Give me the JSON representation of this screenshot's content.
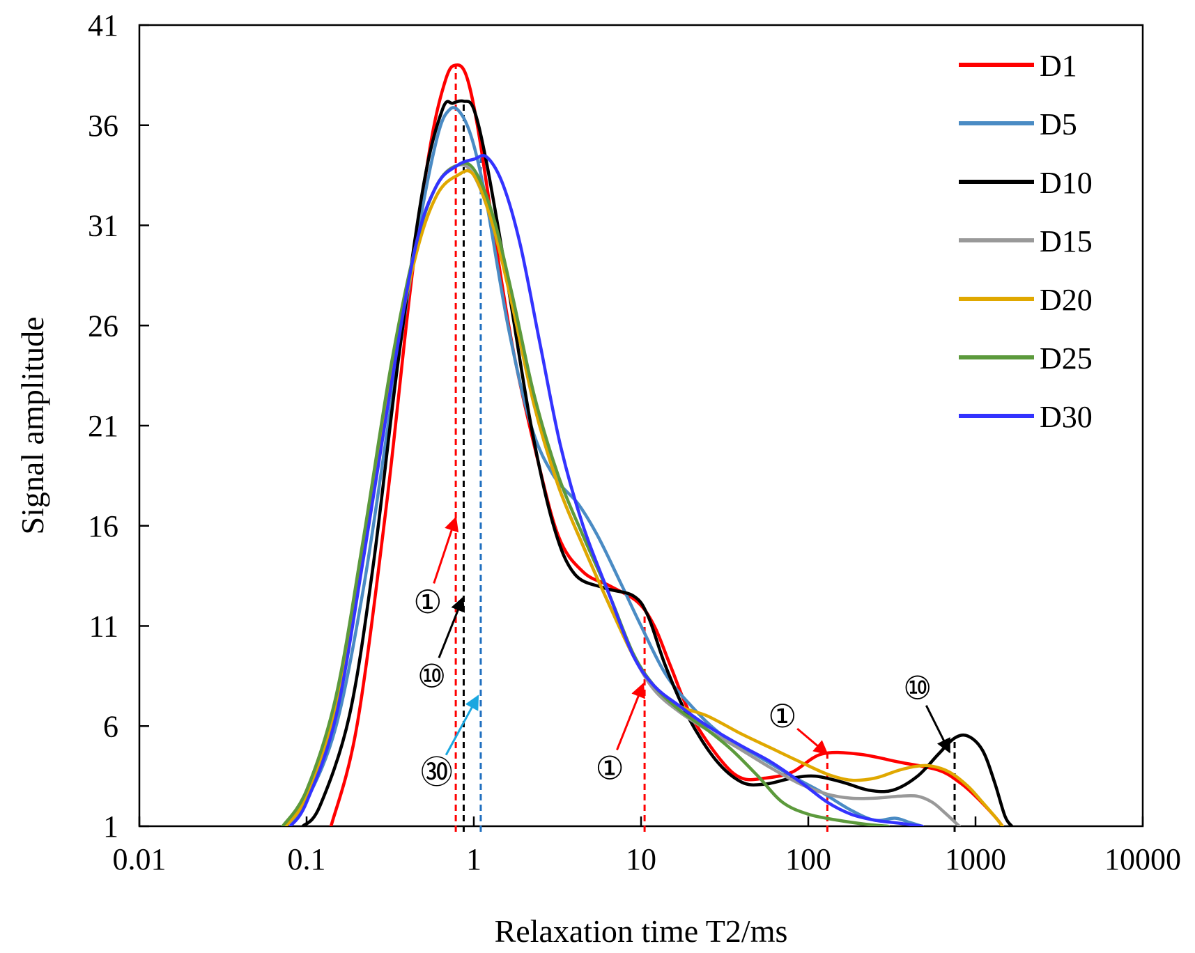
{
  "chart_data": {
    "type": "line",
    "title": "",
    "xlabel": "Relaxation time T2/ms",
    "ylabel": "Signal amplitude",
    "x_scale": "log",
    "xlim": [
      0.01,
      10000
    ],
    "ylim": [
      1,
      41
    ],
    "x_ticks": [
      0.01,
      0.1,
      1,
      10,
      100,
      1000,
      10000
    ],
    "x_tick_labels": [
      "0.01",
      "0.1",
      "1",
      "10",
      "100",
      "1000",
      "10000"
    ],
    "y_ticks": [
      1,
      6,
      11,
      16,
      21,
      26,
      31,
      36,
      41
    ],
    "y_tick_labels": [
      "1",
      "6",
      "11",
      "16",
      "21",
      "26",
      "31",
      "36",
      "41"
    ],
    "legend_position": "top-right",
    "series": [
      {
        "name": "D1",
        "color": "#ff0000",
        "points": [
          [
            0.14,
            1
          ],
          [
            0.2,
            6
          ],
          [
            0.3,
            17
          ],
          [
            0.42,
            28
          ],
          [
            0.55,
            35
          ],
          [
            0.68,
            38.3
          ],
          [
            0.78,
            39
          ],
          [
            0.9,
            38.5
          ],
          [
            1.05,
            36
          ],
          [
            1.3,
            31
          ],
          [
            1.7,
            25
          ],
          [
            2.3,
            20
          ],
          [
            3.2,
            15.5
          ],
          [
            4.5,
            13.7
          ],
          [
            6.5,
            13
          ],
          [
            9.5,
            12.2
          ],
          [
            12,
            11
          ],
          [
            15,
            9
          ],
          [
            20,
            6.5
          ],
          [
            30,
            4.3
          ],
          [
            40,
            3.4
          ],
          [
            55,
            3.4
          ],
          [
            80,
            3.7
          ],
          [
            120,
            4.6
          ],
          [
            200,
            4.6
          ],
          [
            350,
            4.2
          ],
          [
            600,
            3.8
          ],
          [
            800,
            3.2
          ],
          [
            1000,
            2.5
          ],
          [
            1300,
            1.5
          ],
          [
            1450,
            1
          ]
        ]
      },
      {
        "name": "D5",
        "color": "#4a8bc4",
        "points": [
          [
            0.075,
            1
          ],
          [
            0.1,
            2.3
          ],
          [
            0.15,
            6
          ],
          [
            0.22,
            13
          ],
          [
            0.32,
            22
          ],
          [
            0.45,
            30
          ],
          [
            0.6,
            35.3
          ],
          [
            0.72,
            36.8
          ],
          [
            0.85,
            36.5
          ],
          [
            1.0,
            35
          ],
          [
            1.2,
            32
          ],
          [
            1.6,
            26
          ],
          [
            2.2,
            21
          ],
          [
            3,
            18.5
          ],
          [
            4.2,
            17.1
          ],
          [
            5.5,
            15.5
          ],
          [
            7.5,
            13.2
          ],
          [
            10,
            11
          ],
          [
            14,
            8.6
          ],
          [
            20,
            7
          ],
          [
            30,
            5.6
          ],
          [
            50,
            4.5
          ],
          [
            80,
            3.5
          ],
          [
            120,
            2.7
          ],
          [
            180,
            1.8
          ],
          [
            250,
            1.3
          ],
          [
            330,
            1.4
          ],
          [
            400,
            1.2
          ],
          [
            480,
            1
          ]
        ]
      },
      {
        "name": "D10",
        "color": "#000000",
        "points": [
          [
            0.095,
            1
          ],
          [
            0.12,
            2
          ],
          [
            0.18,
            6.5
          ],
          [
            0.25,
            14
          ],
          [
            0.35,
            24
          ],
          [
            0.5,
            33
          ],
          [
            0.65,
            36.8
          ],
          [
            0.75,
            37.1
          ],
          [
            0.87,
            37.2
          ],
          [
            1.0,
            36.8
          ],
          [
            1.2,
            34
          ],
          [
            1.6,
            28
          ],
          [
            2.2,
            21
          ],
          [
            3,
            16
          ],
          [
            4,
            13.6
          ],
          [
            6,
            12.9
          ],
          [
            9,
            12.5
          ],
          [
            11,
            11.5
          ],
          [
            14,
            9
          ],
          [
            19,
            6.5
          ],
          [
            28,
            4.3
          ],
          [
            40,
            3.2
          ],
          [
            55,
            3.1
          ],
          [
            80,
            3.4
          ],
          [
            110,
            3.5
          ],
          [
            160,
            3.2
          ],
          [
            230,
            2.8
          ],
          [
            320,
            2.8
          ],
          [
            450,
            3.5
          ],
          [
            600,
            4.6
          ],
          [
            750,
            5.4
          ],
          [
            900,
            5.5
          ],
          [
            1100,
            4.8
          ],
          [
            1300,
            3.2
          ],
          [
            1500,
            1.5
          ],
          [
            1650,
            1
          ]
        ]
      },
      {
        "name": "D15",
        "color": "#999999",
        "points": [
          [
            0.075,
            1
          ],
          [
            0.1,
            2.5
          ],
          [
            0.15,
            7
          ],
          [
            0.22,
            15
          ],
          [
            0.32,
            23.5
          ],
          [
            0.45,
            30
          ],
          [
            0.6,
            33
          ],
          [
            0.8,
            34
          ],
          [
            1.0,
            33.5
          ],
          [
            1.3,
            31
          ],
          [
            1.7,
            27
          ],
          [
            2.3,
            22
          ],
          [
            3.2,
            18
          ],
          [
            4.5,
            15
          ],
          [
            6.5,
            12
          ],
          [
            9,
            9.5
          ],
          [
            12,
            7.8
          ],
          [
            17,
            6.7
          ],
          [
            25,
            5.8
          ],
          [
            40,
            4.8
          ],
          [
            60,
            3.9
          ],
          [
            90,
            3.1
          ],
          [
            130,
            2.6
          ],
          [
            180,
            2.4
          ],
          [
            250,
            2.4
          ],
          [
            350,
            2.5
          ],
          [
            450,
            2.5
          ],
          [
            550,
            2.2
          ],
          [
            650,
            1.7
          ],
          [
            800,
            1
          ]
        ]
      },
      {
        "name": "D20",
        "color": "#e0a800",
        "points": [
          [
            0.075,
            1
          ],
          [
            0.1,
            2.5
          ],
          [
            0.15,
            7
          ],
          [
            0.22,
            15
          ],
          [
            0.32,
            23.5
          ],
          [
            0.45,
            29.5
          ],
          [
            0.6,
            32.5
          ],
          [
            0.8,
            33.5
          ],
          [
            1.0,
            33.5
          ],
          [
            1.3,
            31
          ],
          [
            1.7,
            27
          ],
          [
            2.3,
            22
          ],
          [
            3.2,
            18
          ],
          [
            4.5,
            15
          ],
          [
            6.5,
            12
          ],
          [
            9,
            9.5
          ],
          [
            12,
            8
          ],
          [
            17,
            7
          ],
          [
            25,
            6.5
          ],
          [
            40,
            5.6
          ],
          [
            60,
            4.9
          ],
          [
            90,
            4.2
          ],
          [
            130,
            3.6
          ],
          [
            180,
            3.3
          ],
          [
            250,
            3.4
          ],
          [
            350,
            3.8
          ],
          [
            450,
            4
          ],
          [
            550,
            4
          ],
          [
            700,
            3.7
          ],
          [
            900,
            3
          ],
          [
            1100,
            2.2
          ],
          [
            1300,
            1.5
          ],
          [
            1450,
            1
          ]
        ]
      },
      {
        "name": "D25",
        "color": "#5c9a3c",
        "points": [
          [
            0.072,
            1
          ],
          [
            0.1,
            2.8
          ],
          [
            0.15,
            7.5
          ],
          [
            0.22,
            15.5
          ],
          [
            0.32,
            24
          ],
          [
            0.45,
            30
          ],
          [
            0.6,
            33
          ],
          [
            0.8,
            34
          ],
          [
            1.0,
            33.8
          ],
          [
            1.3,
            31.5
          ],
          [
            1.7,
            27.5
          ],
          [
            2.3,
            22.5
          ],
          [
            3.2,
            18.5
          ],
          [
            4.5,
            15.5
          ],
          [
            6.5,
            12.5
          ],
          [
            9,
            9.6
          ],
          [
            12,
            8
          ],
          [
            17,
            6.8
          ],
          [
            25,
            5.8
          ],
          [
            35,
            4.8
          ],
          [
            50,
            3.5
          ],
          [
            70,
            2.2
          ],
          [
            100,
            1.6
          ],
          [
            150,
            1.3
          ],
          [
            220,
            1.1
          ],
          [
            300,
            1
          ]
        ]
      },
      {
        "name": "D30",
        "color": "#3333ff",
        "points": [
          [
            0.08,
            1
          ],
          [
            0.1,
            2.2
          ],
          [
            0.15,
            6.5
          ],
          [
            0.22,
            14.5
          ],
          [
            0.32,
            23
          ],
          [
            0.45,
            30
          ],
          [
            0.6,
            33
          ],
          [
            0.8,
            34
          ],
          [
            1.0,
            34.3
          ],
          [
            1.2,
            34.4
          ],
          [
            1.5,
            33
          ],
          [
            1.9,
            30
          ],
          [
            2.5,
            25
          ],
          [
            3.3,
            20
          ],
          [
            4.5,
            16
          ],
          [
            6.5,
            12.5
          ],
          [
            9,
            9.5
          ],
          [
            12,
            8
          ],
          [
            17,
            7
          ],
          [
            25,
            6
          ],
          [
            40,
            5
          ],
          [
            60,
            4.2
          ],
          [
            90,
            3.2
          ],
          [
            130,
            2.2
          ],
          [
            180,
            1.6
          ],
          [
            250,
            1.3
          ],
          [
            350,
            1.15
          ],
          [
            480,
            1
          ]
        ]
      }
    ],
    "reference_lines": [
      {
        "x": 0.78,
        "color": "#ff0000"
      },
      {
        "x": 0.87,
        "color": "#000000"
      },
      {
        "x": 1.1,
        "color": "#1f6fbf"
      },
      {
        "x": 10.5,
        "color": "#ff0000"
      },
      {
        "x": 130,
        "color": "#ff0000"
      },
      {
        "x": 750,
        "color": "#000000"
      }
    ],
    "annotations": [
      {
        "label": "①",
        "text_x": 0.53,
        "text_y": 12.2,
        "arrow_to_x": 0.78,
        "arrow_to_y": 16.4,
        "color": "#ff0000"
      },
      {
        "label": "⑩",
        "text_x": 0.56,
        "text_y": 8.5,
        "arrow_to_x": 0.86,
        "arrow_to_y": 12.4,
        "color": "#000000"
      },
      {
        "label": "㉚",
        "text_x": 0.6,
        "text_y": 3.7,
        "arrow_to_x": 1.06,
        "arrow_to_y": 7.5,
        "color": "#1aa7e0"
      },
      {
        "label": "①",
        "text_x": 6.5,
        "text_y": 3.9,
        "arrow_to_x": 10.3,
        "arrow_to_y": 8.1,
        "color": "#ff0000"
      },
      {
        "label": "①",
        "text_x": 70,
        "text_y": 6.5,
        "arrow_to_x": 130,
        "arrow_to_y": 4.6,
        "color": "#ff0000"
      },
      {
        "label": "⑩",
        "text_x": 450,
        "text_y": 7.9,
        "arrow_to_x": 700,
        "arrow_to_y": 4.7,
        "color": "#000000"
      }
    ]
  }
}
